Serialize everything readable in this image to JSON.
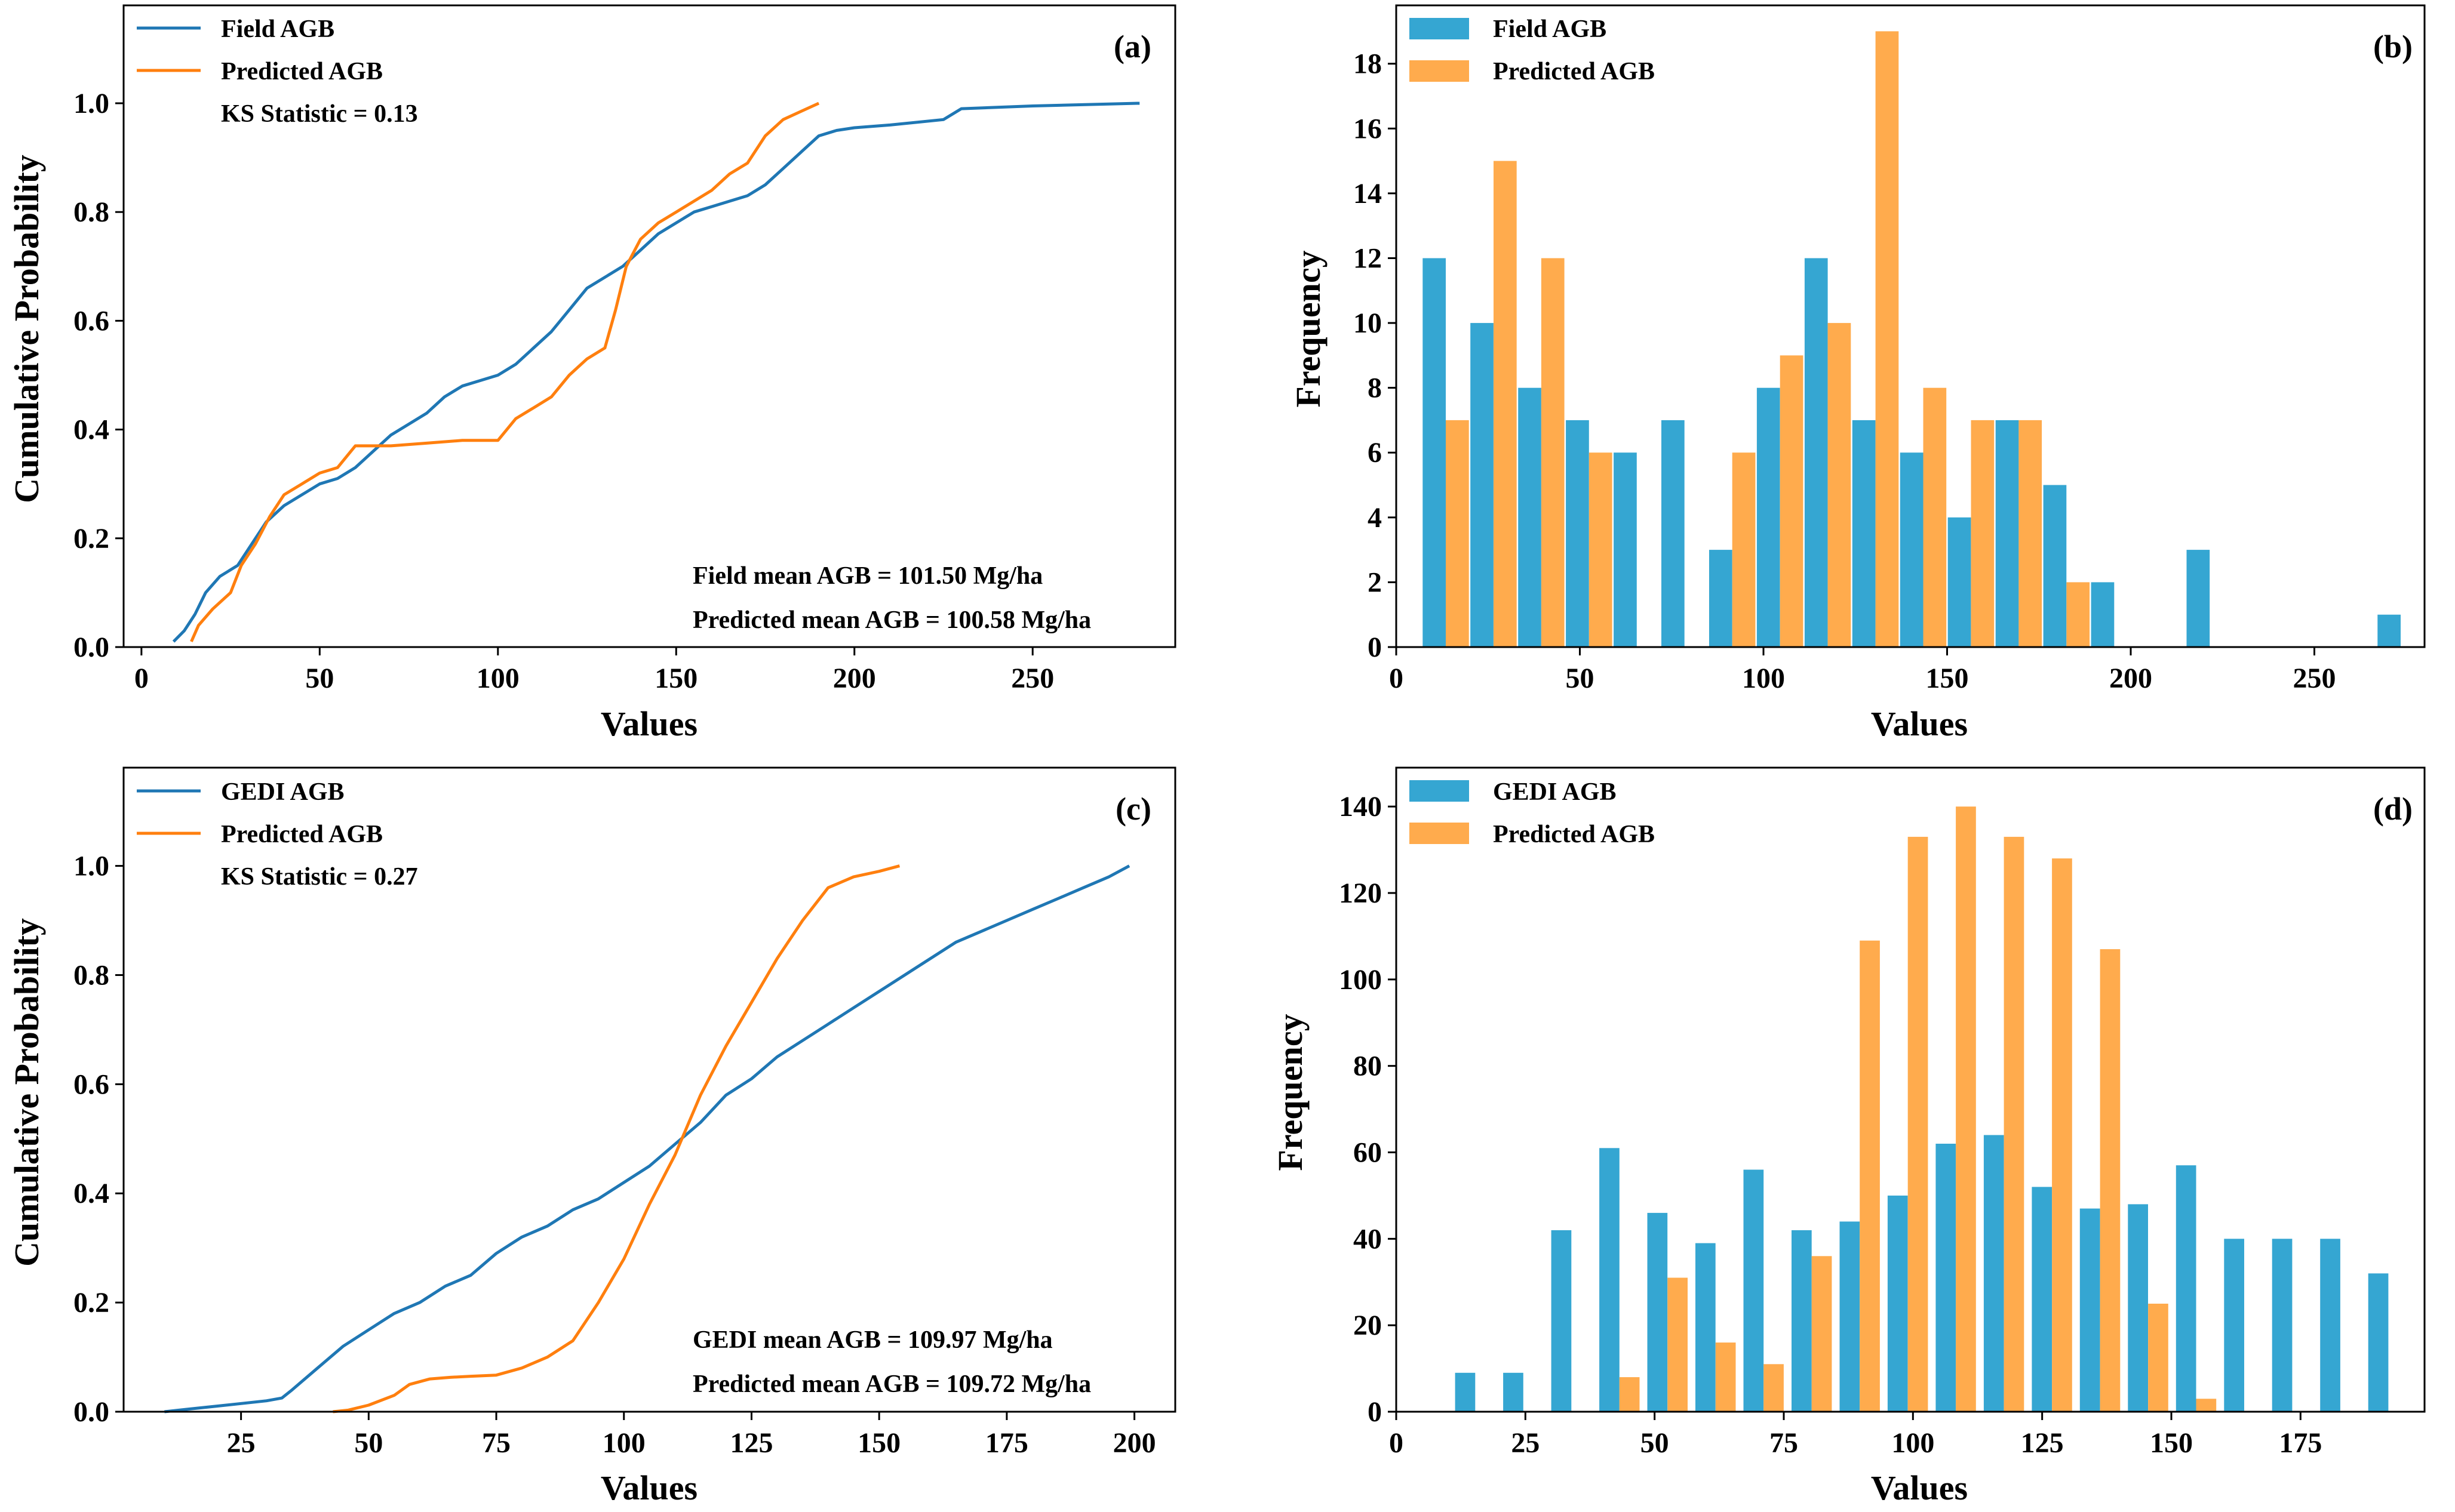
{
  "chart_data": [
    {
      "id": "a",
      "type": "line",
      "panel_label": "(a)",
      "xlabel": "Values",
      "ylabel": "Cumulative Probability",
      "xlim": [
        -5,
        290
      ],
      "ylim": [
        0,
        1.18
      ],
      "xticks": [
        0,
        50,
        100,
        150,
        200,
        250
      ],
      "yticks": [
        0.0,
        0.2,
        0.4,
        0.6,
        0.8,
        1.0
      ],
      "xtick_labels": [
        "0",
        "50",
        "100",
        "150",
        "200",
        "250"
      ],
      "ytick_labels": [
        "0.0",
        "0.2",
        "0.4",
        "0.6",
        "0.8",
        "1.0"
      ],
      "legend": [
        "Field AGB",
        "Predicted AGB"
      ],
      "legend_position": "top-left",
      "stat_text": "KS Statistic = 0.13",
      "annotations": [
        "Field mean AGB = 101.50 Mg/ha",
        "Predicted mean AGB = 100.58 Mg/ha"
      ],
      "series": [
        {
          "name": "Field AGB",
          "color": "#1f77b4",
          "x": [
            9,
            12,
            15,
            18,
            22,
            27,
            31,
            35,
            40,
            45,
            50,
            55,
            60,
            65,
            70,
            75,
            80,
            85,
            90,
            95,
            100,
            105,
            110,
            115,
            120,
            125,
            130,
            135,
            140,
            145,
            150,
            155,
            160,
            165,
            170,
            175,
            180,
            185,
            190,
            195,
            200,
            210,
            225,
            230,
            250,
            280
          ],
          "y": [
            0.01,
            0.03,
            0.06,
            0.1,
            0.13,
            0.15,
            0.19,
            0.23,
            0.26,
            0.28,
            0.3,
            0.31,
            0.33,
            0.36,
            0.39,
            0.41,
            0.43,
            0.46,
            0.48,
            0.49,
            0.5,
            0.52,
            0.55,
            0.58,
            0.62,
            0.66,
            0.68,
            0.7,
            0.73,
            0.76,
            0.78,
            0.8,
            0.81,
            0.82,
            0.83,
            0.85,
            0.88,
            0.91,
            0.94,
            0.95,
            0.955,
            0.96,
            0.97,
            0.99,
            0.995,
            1.0
          ]
        },
        {
          "name": "Predicted AGB",
          "color": "#ff7f0e",
          "x": [
            14,
            16,
            20,
            25,
            28,
            32,
            36,
            40,
            45,
            50,
            55,
            60,
            70,
            80,
            90,
            100,
            105,
            110,
            115,
            120,
            125,
            130,
            133,
            136,
            140,
            145,
            150,
            155,
            160,
            165,
            170,
            175,
            180,
            185,
            190
          ],
          "y": [
            0.01,
            0.04,
            0.07,
            0.1,
            0.15,
            0.19,
            0.24,
            0.28,
            0.3,
            0.32,
            0.33,
            0.37,
            0.37,
            0.375,
            0.38,
            0.38,
            0.42,
            0.44,
            0.46,
            0.5,
            0.53,
            0.55,
            0.62,
            0.7,
            0.75,
            0.78,
            0.8,
            0.82,
            0.84,
            0.87,
            0.89,
            0.94,
            0.97,
            0.985,
            1.0
          ]
        }
      ]
    },
    {
      "id": "b",
      "type": "bar",
      "panel_label": "(b)",
      "xlabel": "Values",
      "ylabel": "Frequency",
      "xlim": [
        0,
        280
      ],
      "ylim": [
        0,
        19.8
      ],
      "xticks": [
        0,
        50,
        100,
        150,
        200,
        250
      ],
      "yticks": [
        0,
        2,
        4,
        6,
        8,
        10,
        12,
        14,
        16,
        18
      ],
      "xtick_labels": [
        "0",
        "50",
        "100",
        "150",
        "200",
        "250"
      ],
      "ytick_labels": [
        "0",
        "2",
        "4",
        "6",
        "8",
        "10",
        "12",
        "14",
        "16",
        "18"
      ],
      "legend": [
        "Field AGB",
        "Predicted AGB"
      ],
      "legend_position": "top-left",
      "categories": [
        13.5,
        26.5,
        39.5,
        52.5,
        65.5,
        78.5,
        91.5,
        104.5,
        117.5,
        130.5,
        143.5,
        156.5,
        169.5,
        182.5,
        195.5,
        208.5,
        221.5,
        234.5,
        247.5,
        260.5,
        273.5
      ],
      "bar_width": 6.3,
      "series": [
        {
          "name": "Field AGB",
          "color": "#35a6d2",
          "offset": -1,
          "values": [
            12,
            10,
            8,
            7,
            6,
            7,
            3,
            8,
            12,
            7,
            6,
            4,
            7,
            5,
            2,
            0,
            3,
            0,
            0,
            0,
            1
          ]
        },
        {
          "name": "Predicted AGB",
          "color": "#ffab4d",
          "offset": 1,
          "values": [
            7,
            15,
            12,
            6,
            0,
            0,
            6,
            9,
            10,
            19,
            8,
            7,
            7,
            2,
            0,
            0,
            0,
            0,
            0,
            0,
            0
          ]
        }
      ]
    },
    {
      "id": "c",
      "type": "line",
      "panel_label": "(c)",
      "xlabel": "Values",
      "ylabel": "Cumulative Probability",
      "xlim": [
        2,
        208
      ],
      "ylim": [
        0,
        1.18
      ],
      "xticks": [
        25,
        50,
        75,
        100,
        125,
        150,
        175,
        200
      ],
      "yticks": [
        0.0,
        0.2,
        0.4,
        0.6,
        0.8,
        1.0
      ],
      "xtick_labels": [
        "25",
        "50",
        "75",
        "100",
        "125",
        "150",
        "175",
        "200"
      ],
      "ytick_labels": [
        "0.0",
        "0.2",
        "0.4",
        "0.6",
        "0.8",
        "1.0"
      ],
      "legend": [
        "GEDI AGB",
        "Predicted AGB"
      ],
      "legend_position": "top-left",
      "stat_text": "KS Statistic = 0.27",
      "annotations": [
        "GEDI mean AGB = 109.97 Mg/ha",
        "Predicted mean AGB = 109.72 Mg/ha"
      ],
      "series": [
        {
          "name": "GEDI AGB",
          "color": "#1f77b4",
          "x": [
            10,
            15,
            20,
            25,
            30,
            33,
            35,
            40,
            45,
            50,
            55,
            60,
            65,
            70,
            75,
            80,
            85,
            90,
            95,
            100,
            105,
            110,
            115,
            120,
            125,
            130,
            135,
            140,
            145,
            150,
            155,
            160,
            165,
            170,
            175,
            180,
            185,
            190,
            195,
            199
          ],
          "y": [
            0.0,
            0.005,
            0.01,
            0.015,
            0.02,
            0.025,
            0.04,
            0.08,
            0.12,
            0.15,
            0.18,
            0.2,
            0.23,
            0.25,
            0.29,
            0.32,
            0.34,
            0.37,
            0.39,
            0.42,
            0.45,
            0.49,
            0.53,
            0.58,
            0.61,
            0.65,
            0.68,
            0.71,
            0.74,
            0.77,
            0.8,
            0.83,
            0.86,
            0.88,
            0.9,
            0.92,
            0.94,
            0.96,
            0.98,
            1.0
          ]
        },
        {
          "name": "Predicted AGB",
          "color": "#ff7f0e",
          "x": [
            43,
            46,
            50,
            55,
            58,
            62,
            66,
            70,
            75,
            80,
            85,
            90,
            95,
            100,
            105,
            110,
            115,
            120,
            125,
            130,
            135,
            140,
            145,
            150,
            154
          ],
          "y": [
            0.0,
            0.003,
            0.012,
            0.03,
            0.05,
            0.06,
            0.063,
            0.065,
            0.067,
            0.08,
            0.1,
            0.13,
            0.2,
            0.28,
            0.38,
            0.47,
            0.58,
            0.67,
            0.75,
            0.83,
            0.9,
            0.96,
            0.98,
            0.99,
            1.0
          ]
        }
      ]
    },
    {
      "id": "d",
      "type": "bar",
      "panel_label": "(d)",
      "xlabel": "Values",
      "ylabel": "Frequency",
      "xlim": [
        0,
        199
      ],
      "ylim": [
        0,
        149
      ],
      "xticks": [
        0,
        25,
        50,
        75,
        100,
        125,
        150,
        175
      ],
      "yticks": [
        0,
        20,
        40,
        60,
        80,
        100,
        120,
        140
      ],
      "xtick_labels": [
        "0",
        "25",
        "50",
        "75",
        "100",
        "125",
        "150",
        "175"
      ],
      "ytick_labels": [
        "0",
        "20",
        "40",
        "60",
        "80",
        "100",
        "120",
        "140"
      ],
      "legend": [
        "GEDI AGB",
        "Predicted AGB"
      ],
      "legend_position": "top-left",
      "categories": [
        15.3,
        24.6,
        33.9,
        43.2,
        52.5,
        61.8,
        71.1,
        80.4,
        89.7,
        99.0,
        108.3,
        117.6,
        126.9,
        136.2,
        145.5,
        154.8,
        164.1,
        173.4,
        182.7,
        192.0
      ],
      "bar_width": 3.9,
      "series": [
        {
          "name": "GEDI AGB",
          "color": "#35a6d2",
          "offset": -1,
          "values": [
            9,
            9,
            42,
            61,
            46,
            39,
            56,
            42,
            44,
            50,
            62,
            64,
            52,
            47,
            48,
            57,
            40,
            40,
            40,
            32
          ]
        },
        {
          "name": "Predicted AGB",
          "color": "#ffab4d",
          "offset": 1,
          "values": [
            0,
            0,
            0,
            8,
            31,
            16,
            11,
            36,
            109,
            133,
            140,
            133,
            128,
            107,
            25,
            3,
            0,
            0,
            0,
            0
          ]
        }
      ]
    }
  ]
}
